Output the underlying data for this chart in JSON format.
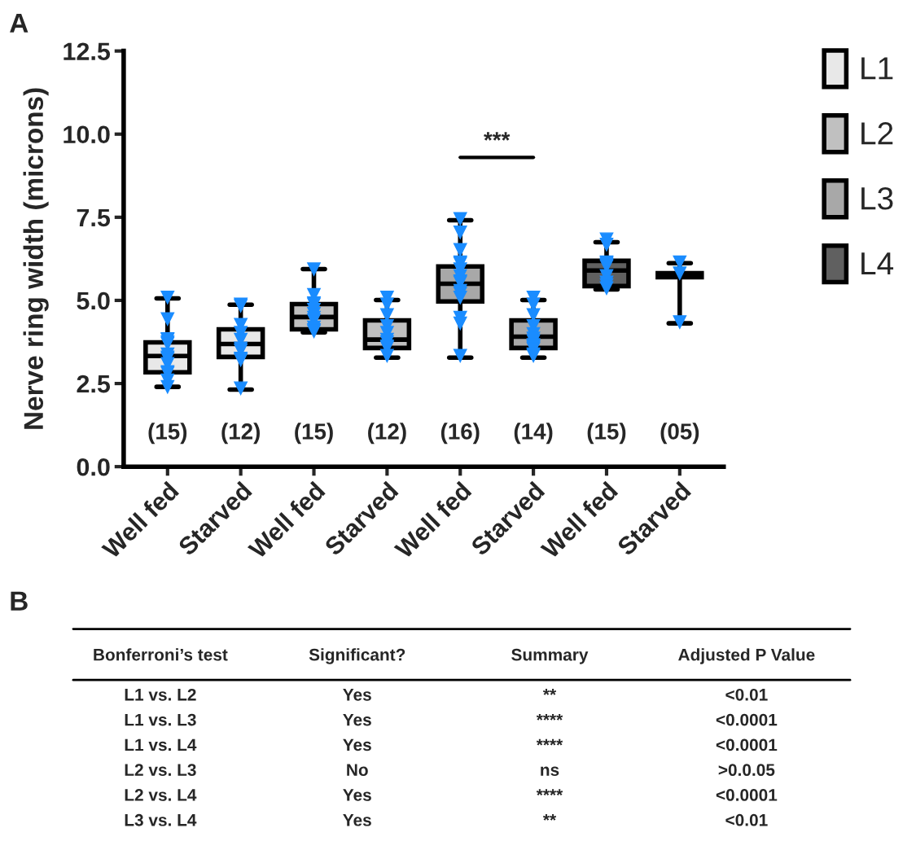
{
  "chart_data": {
    "type": "box",
    "categories": [
      "Well fed",
      "Starved",
      "Well fed",
      "Starved",
      "Well fed",
      "Starved",
      "Well fed",
      "Starved"
    ],
    "ylabel": "Nerve ring width (microns)",
    "ylim": [
      0,
      12.5
    ],
    "yticks": [
      {
        "value": 0,
        "label": "0.0"
      },
      {
        "value": 2.5,
        "label": "2.5"
      },
      {
        "value": 5,
        "label": "5.0"
      },
      {
        "value": 7.5,
        "label": "7.5"
      },
      {
        "value": 10,
        "label": "10.0"
      },
      {
        "value": 12.5,
        "label": "12.5"
      }
    ],
    "grid": false,
    "legend": "top right",
    "marker": "triangle",
    "series": [
      {
        "name": "L1",
        "color": "#e8e8e8",
        "boxes": [
          {
            "low": 2.4,
            "q1": 2.84,
            "median": 3.33,
            "q3": 3.74,
            "high": 5.06,
            "outliers": [
              5.09,
              4.44,
              3.82,
              3.74,
              3.7,
              3.84,
              3.38,
              3.25,
              3.29,
              3.09,
              2.85,
              2.81,
              2.6,
              2.4
            ]
          },
          {
            "low": 2.32,
            "q1": 3.3,
            "median": 3.69,
            "q3": 4.13,
            "high": 4.87,
            "outliers": [
              4.84,
              4.88,
              4.27,
              4.03,
              3.82,
              3.56,
              3.5,
              3.25,
              3.21,
              2.36
            ]
          },
          null,
          null,
          null,
          null,
          null,
          null
        ]
      },
      {
        "name": "L2",
        "color": "#c0c0c0",
        "boxes": [
          null,
          null,
          {
            "low": 4.04,
            "q1": 4.13,
            "median": 4.5,
            "q3": 4.89,
            "high": 5.94,
            "outliers": [
              5.94,
              5.17,
              4.92,
              4.88,
              4.72,
              4.6,
              4.48,
              4.4,
              4.19,
              4.11,
              4.07
            ]
          },
          {
            "low": 3.28,
            "q1": 3.57,
            "median": 3.82,
            "q3": 4.4,
            "high": 5.01,
            "outliers": [
              5.09,
              4.88,
              4.56,
              4.23,
              4.03,
              3.82,
              3.74,
              3.62,
              3.58,
              3.34
            ]
          },
          null,
          null,
          null,
          null
        ]
      },
      {
        "name": "L3",
        "color": "#a8a8a8",
        "boxes": [
          null,
          null,
          null,
          null,
          {
            "low": 3.28,
            "q1": 4.97,
            "median": 5.5,
            "q3": 6.02,
            "high": 7.41,
            "outliers": [
              7.45,
              7.05,
              6.52,
              6.15,
              6.11,
              5.94,
              5.74,
              5.58,
              5.54,
              5.29,
              5.21,
              5.09,
              4.48,
              4.31,
              3.34
            ]
          },
          {
            "low": 3.28,
            "q1": 3.57,
            "median": 3.91,
            "q3": 4.4,
            "high": 5.01,
            "outliers": [
              5.09,
              4.88,
              4.56,
              4.23,
              3.99,
              3.86,
              3.78,
              3.66,
              3.62,
              3.58,
              3.54,
              3.38,
              3.34
            ]
          },
          null,
          null
        ]
      },
      {
        "name": "L4",
        "color": "#606060",
        "boxes": [
          null,
          null,
          null,
          null,
          null,
          null,
          {
            "low": 5.33,
            "q1": 5.43,
            "median": 5.9,
            "q3": 6.19,
            "high": 6.75,
            "outliers": [
              6.84,
              6.68,
              6.15,
              6.11,
              6.07,
              6.03,
              5.74,
              5.54,
              5.46,
              5.37
            ]
          },
          {
            "low": 4.31,
            "q1": 5.7,
            "median": 5.77,
            "q3": 5.82,
            "high": 6.12,
            "outliers": [
              6.15,
              5.82,
              4.35
            ]
          }
        ]
      }
    ],
    "annotations": [
      "***",
      "A",
      "B",
      "(15)",
      "(12)",
      "(15)",
      "(12)",
      "(16)",
      "(14)",
      "(15)",
      "(05)",
      "Bonferroni’s test",
      "Significant?",
      "Summary",
      "Adjusted P Value",
      "L1 vs. L2",
      "Yes",
      "**",
      "<0.01",
      "L1 vs. L3",
      "Yes",
      "****",
      "<0.0001",
      "L1 vs. L4",
      "Yes",
      "****",
      "<0.0001",
      "L2 vs. L3",
      "No",
      "ns",
      ">0.0.05",
      "L2 vs. L4",
      "Yes",
      "****",
      "<0.0001",
      "L3 vs. L4",
      "Yes",
      "**",
      "<0.01"
    ]
  }
}
